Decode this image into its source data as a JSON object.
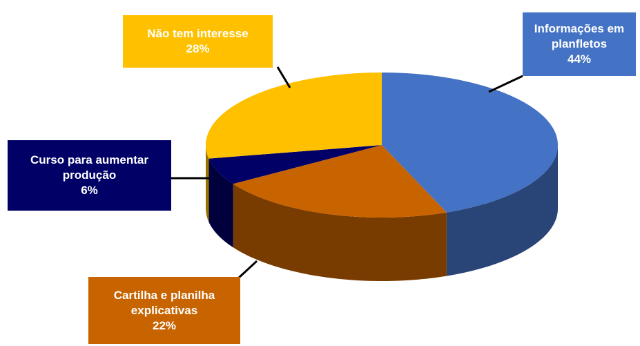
{
  "chart_data": {
    "type": "pie",
    "categories": [
      "Informações em planfletos",
      "Cartilha e planilha explicativas",
      "Curso para aumentar produção",
      "Não tem interesse"
    ],
    "values": [
      44,
      22,
      6,
      28
    ],
    "value_labels": [
      "44%",
      "22%",
      "6%",
      "28%"
    ],
    "colors": [
      "#4472c4",
      "#c86400",
      "#000066",
      "#ffc000"
    ]
  }
}
